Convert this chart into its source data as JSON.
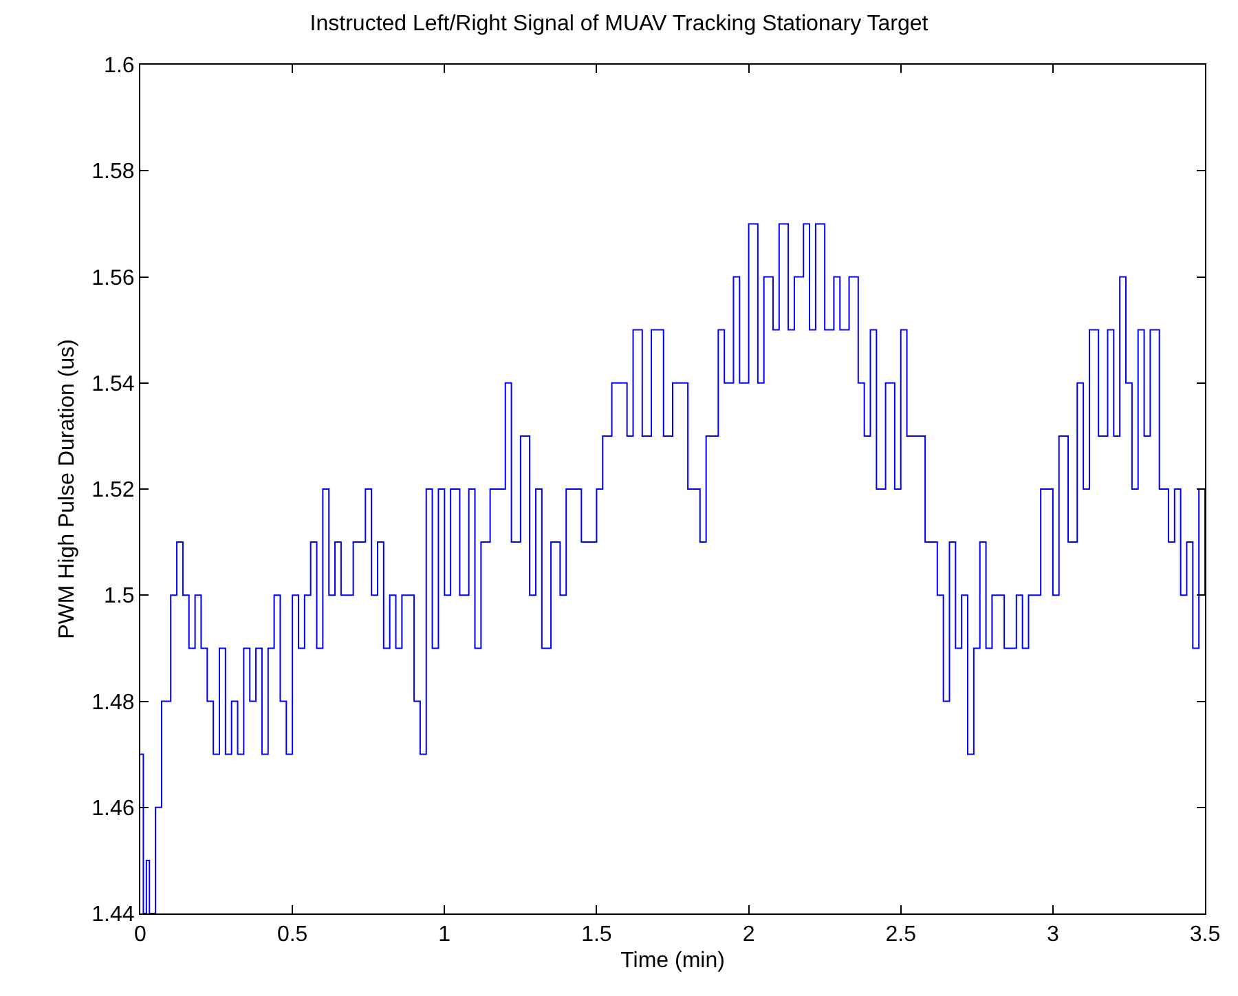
{
  "chart_data": {
    "type": "step",
    "title": "Instructed Left/Right Signal of MUAV Tracking Stationary Target",
    "xlabel": "Time (min)",
    "ylabel": "PWM High Pulse Duration (us)",
    "x": [
      0,
      0.01,
      0.02,
      0.03,
      0.05,
      0.07,
      0.09,
      0.1,
      0.12,
      0.14,
      0.16,
      0.18,
      0.2,
      0.22,
      0.24,
      0.26,
      0.28,
      0.3,
      0.32,
      0.34,
      0.36,
      0.38,
      0.4,
      0.42,
      0.44,
      0.46,
      0.48,
      0.5,
      0.52,
      0.54,
      0.56,
      0.58,
      0.6,
      0.62,
      0.64,
      0.66,
      0.7,
      0.74,
      0.76,
      0.78,
      0.8,
      0.82,
      0.84,
      0.86,
      0.9,
      0.92,
      0.94,
      0.96,
      0.98,
      1.0,
      1.02,
      1.05,
      1.08,
      1.1,
      1.12,
      1.15,
      1.2,
      1.22,
      1.25,
      1.28,
      1.3,
      1.32,
      1.35,
      1.38,
      1.4,
      1.45,
      1.5,
      1.52,
      1.55,
      1.6,
      1.62,
      1.65,
      1.68,
      1.72,
      1.75,
      1.8,
      1.84,
      1.86,
      1.9,
      1.92,
      1.95,
      1.97,
      2.0,
      2.03,
      2.05,
      2.08,
      2.1,
      2.13,
      2.15,
      2.18,
      2.2,
      2.22,
      2.25,
      2.28,
      2.3,
      2.33,
      2.36,
      2.38,
      2.4,
      2.42,
      2.45,
      2.48,
      2.5,
      2.52,
      2.58,
      2.62,
      2.64,
      2.66,
      2.68,
      2.7,
      2.72,
      2.74,
      2.76,
      2.78,
      2.8,
      2.84,
      2.88,
      2.9,
      2.92,
      2.96,
      3.0,
      3.02,
      3.05,
      3.08,
      3.1,
      3.12,
      3.15,
      3.18,
      3.2,
      3.22,
      3.24,
      3.26,
      3.28,
      3.3,
      3.32,
      3.35,
      3.38,
      3.4,
      3.42,
      3.44,
      3.46,
      3.48,
      3.5
    ],
    "series": [
      {
        "color": "#0000ff",
        "values": [
          1.47,
          1.44,
          1.45,
          1.44,
          1.46,
          1.48,
          1.48,
          1.5,
          1.51,
          1.5,
          1.49,
          1.5,
          1.49,
          1.48,
          1.47,
          1.49,
          1.47,
          1.48,
          1.47,
          1.49,
          1.48,
          1.49,
          1.47,
          1.49,
          1.5,
          1.48,
          1.47,
          1.5,
          1.49,
          1.5,
          1.51,
          1.49,
          1.52,
          1.5,
          1.51,
          1.5,
          1.51,
          1.52,
          1.5,
          1.51,
          1.49,
          1.5,
          1.49,
          1.5,
          1.48,
          1.47,
          1.52,
          1.49,
          1.52,
          1.5,
          1.52,
          1.5,
          1.52,
          1.49,
          1.51,
          1.52,
          1.54,
          1.51,
          1.53,
          1.5,
          1.52,
          1.49,
          1.51,
          1.5,
          1.52,
          1.51,
          1.52,
          1.53,
          1.54,
          1.53,
          1.55,
          1.53,
          1.55,
          1.53,
          1.54,
          1.52,
          1.51,
          1.53,
          1.55,
          1.54,
          1.56,
          1.54,
          1.57,
          1.54,
          1.56,
          1.55,
          1.57,
          1.55,
          1.56,
          1.57,
          1.55,
          1.57,
          1.55,
          1.56,
          1.55,
          1.56,
          1.54,
          1.53,
          1.55,
          1.52,
          1.54,
          1.52,
          1.55,
          1.53,
          1.51,
          1.5,
          1.48,
          1.51,
          1.49,
          1.5,
          1.47,
          1.49,
          1.51,
          1.49,
          1.5,
          1.49,
          1.5,
          1.49,
          1.5,
          1.52,
          1.5,
          1.53,
          1.51,
          1.54,
          1.52,
          1.55,
          1.53,
          1.55,
          1.53,
          1.56,
          1.54,
          1.52,
          1.55,
          1.53,
          1.55,
          1.52,
          1.51,
          1.52,
          1.5,
          1.51,
          1.49,
          1.52,
          1.5
        ]
      }
    ],
    "xlim": [
      0,
      3.5
    ],
    "xticks": [
      0,
      0.5,
      1,
      1.5,
      2,
      2.5,
      3,
      3.5
    ],
    "ylim": [
      1.44,
      1.6
    ],
    "yticks": [
      1.44,
      1.46,
      1.48,
      1.5,
      1.52,
      1.54,
      1.56,
      1.58,
      1.6
    ],
    "marker": "none",
    "line_style": "solid"
  }
}
